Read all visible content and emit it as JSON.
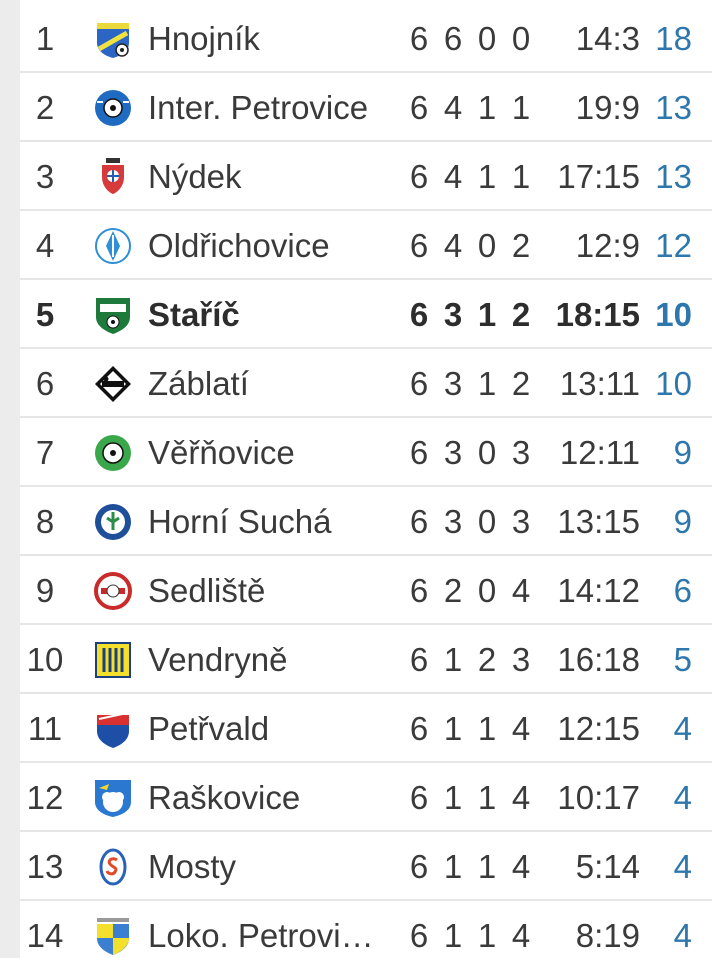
{
  "colors": {
    "points": "#2e77ad",
    "text": "#3a3a3a",
    "row_divider": "#e6e6e6",
    "background": "#ececec"
  },
  "standings": [
    {
      "rank": "1",
      "team": "Hnojník",
      "played": "6",
      "won": "6",
      "drawn": "0",
      "lost": "0",
      "score": "14:3",
      "points": "18",
      "logo": "hnojnik-crest-icon"
    },
    {
      "rank": "2",
      "team": "Inter. Petrovice",
      "played": "6",
      "won": "4",
      "drawn": "1",
      "lost": "1",
      "score": "19:9",
      "points": "13",
      "logo": "inter-petrovice-crest-icon"
    },
    {
      "rank": "3",
      "team": "Nýdek",
      "played": "6",
      "won": "4",
      "drawn": "1",
      "lost": "1",
      "score": "17:15",
      "points": "13",
      "logo": "nydek-crest-icon"
    },
    {
      "rank": "4",
      "team": "Oldřichovice",
      "played": "6",
      "won": "4",
      "drawn": "0",
      "lost": "2",
      "score": "12:9",
      "points": "12",
      "logo": "oldrichovice-crest-icon"
    },
    {
      "rank": "5",
      "team": "Staříč",
      "played": "6",
      "won": "3",
      "drawn": "1",
      "lost": "2",
      "score": "18:15",
      "points": "10",
      "logo": "staric-crest-icon",
      "highlighted": true
    },
    {
      "rank": "6",
      "team": "Záblatí",
      "played": "6",
      "won": "3",
      "drawn": "1",
      "lost": "2",
      "score": "13:11",
      "points": "10",
      "logo": "zablati-crest-icon"
    },
    {
      "rank": "7",
      "team": "Věřňovice",
      "played": "6",
      "won": "3",
      "drawn": "0",
      "lost": "3",
      "score": "12:11",
      "points": "9",
      "logo": "verovice-crest-icon"
    },
    {
      "rank": "8",
      "team": "Horní Suchá",
      "played": "6",
      "won": "3",
      "drawn": "0",
      "lost": "3",
      "score": "13:15",
      "points": "9",
      "logo": "horni-sucha-crest-icon"
    },
    {
      "rank": "9",
      "team": "Sedliště",
      "played": "6",
      "won": "2",
      "drawn": "0",
      "lost": "4",
      "score": "14:12",
      "points": "6",
      "logo": "sedliste-crest-icon"
    },
    {
      "rank": "10",
      "team": "Vendryně",
      "played": "6",
      "won": "1",
      "drawn": "2",
      "lost": "3",
      "score": "16:18",
      "points": "5",
      "logo": "vendryne-crest-icon"
    },
    {
      "rank": "11",
      "team": "Petřvald",
      "played": "6",
      "won": "1",
      "drawn": "1",
      "lost": "4",
      "score": "12:15",
      "points": "4",
      "logo": "petrvald-crest-icon"
    },
    {
      "rank": "12",
      "team": "Raškovice",
      "played": "6",
      "won": "1",
      "drawn": "1",
      "lost": "4",
      "score": "10:17",
      "points": "4",
      "logo": "raskovice-crest-icon"
    },
    {
      "rank": "13",
      "team": "Mosty",
      "played": "6",
      "won": "1",
      "drawn": "1",
      "lost": "4",
      "score": "5:14",
      "points": "4",
      "logo": "mosty-crest-icon"
    },
    {
      "rank": "14",
      "team": "Loko. Petrovi…",
      "played": "6",
      "won": "1",
      "drawn": "1",
      "lost": "4",
      "score": "8:19",
      "points": "4",
      "logo": "loko-petrovice-crest-icon"
    }
  ]
}
